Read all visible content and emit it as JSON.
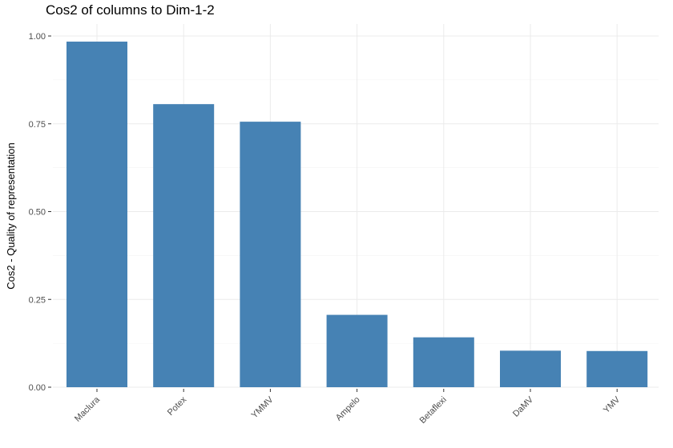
{
  "chart_data": {
    "type": "bar",
    "title": "Cos2 of columns to Dim-1-2",
    "xlabel": "",
    "ylabel": "Cos2 - Quality of representation",
    "categories": [
      "Maclura",
      "Potex",
      "YMMV",
      "Ampelo",
      "Betaflexi",
      "DaMV",
      "YMV"
    ],
    "values": [
      0.984,
      0.806,
      0.756,
      0.206,
      0.142,
      0.104,
      0.103
    ],
    "ylim": [
      0,
      1.0
    ],
    "yticks": [
      "0.00",
      "0.25",
      "0.50",
      "0.75",
      "1.00"
    ],
    "grid": true,
    "legend": "none",
    "bar_color": "#4682B4"
  }
}
